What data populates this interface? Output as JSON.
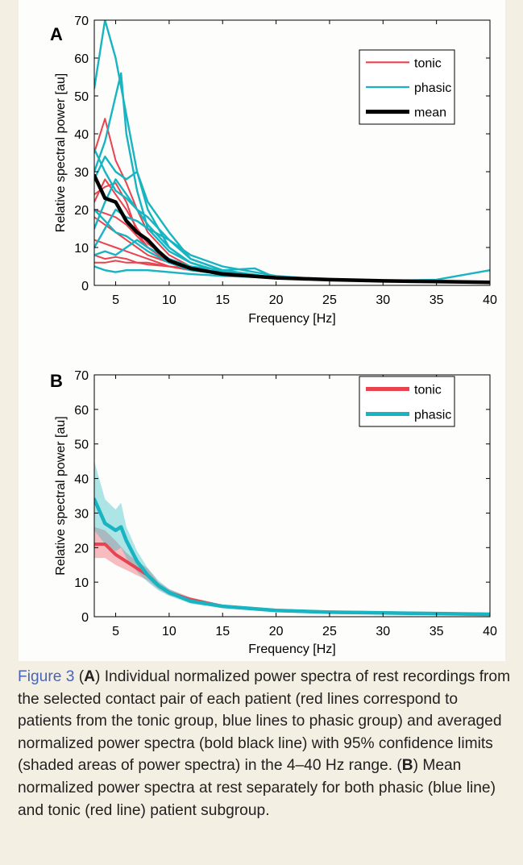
{
  "colors": {
    "background": "#f3f0e3",
    "tonic": "#e8434f",
    "phasic": "#18b4c1",
    "mean": "#000000",
    "caption_label": "#4a64b5"
  },
  "chart_data": [
    {
      "type": "line",
      "panel_label": "A",
      "xlabel": "Frequency [Hz]",
      "ylabel": "Relative spectral power [au]",
      "xlim": [
        3,
        40
      ],
      "ylim": [
        0,
        70
      ],
      "xticks": [
        5,
        10,
        15,
        20,
        25,
        30,
        35,
        40
      ],
      "yticks": [
        0,
        10,
        20,
        30,
        40,
        50,
        60,
        70
      ],
      "legend_position": "top-right",
      "legend": [
        {
          "label": "tonic",
          "color": "#e8434f"
        },
        {
          "label": "phasic",
          "color": "#18b4c1"
        },
        {
          "label": "mean",
          "color": "#000000"
        }
      ],
      "series": [
        {
          "group": "tonic",
          "x": [
            3,
            4,
            5,
            6,
            7,
            8,
            10,
            12,
            15,
            20,
            25,
            30,
            35,
            40
          ],
          "y": [
            35,
            44,
            33,
            27,
            20,
            14,
            8,
            5,
            3,
            2,
            1.5,
            1.2,
            1,
            0.8
          ]
        },
        {
          "group": "tonic",
          "x": [
            3,
            4,
            5,
            6,
            7,
            8,
            10,
            12,
            15,
            20,
            25,
            30,
            35,
            40
          ],
          "y": [
            22,
            28,
            24,
            20,
            15,
            11,
            7,
            4.5,
            3,
            2,
            1.5,
            1.2,
            1,
            0.8
          ]
        },
        {
          "group": "tonic",
          "x": [
            3,
            4,
            5,
            6,
            7,
            8,
            10,
            12,
            15,
            20,
            25,
            30,
            35,
            40
          ],
          "y": [
            18,
            16,
            14,
            12,
            10,
            8,
            6,
            4,
            3,
            2,
            1.5,
            1.2,
            1,
            1
          ]
        },
        {
          "group": "tonic",
          "x": [
            3,
            4,
            5,
            6,
            7,
            8,
            10,
            12,
            15,
            20,
            25,
            30,
            35,
            40
          ],
          "y": [
            24,
            26,
            27,
            22,
            14,
            10,
            6,
            4,
            3,
            2,
            1.5,
            1.2,
            1,
            0.8
          ]
        },
        {
          "group": "tonic",
          "x": [
            3,
            4,
            5,
            6,
            7,
            8,
            10,
            12,
            15,
            20,
            25,
            30,
            35,
            40
          ],
          "y": [
            8,
            7,
            7.5,
            7,
            6,
            6,
            5,
            4,
            3,
            2,
            1.5,
            1.2,
            1,
            0.8
          ]
        },
        {
          "group": "tonic",
          "x": [
            3,
            4,
            5,
            6,
            7,
            8,
            10,
            12,
            15,
            20,
            25,
            30,
            35,
            40
          ],
          "y": [
            6,
            6,
            6.5,
            6,
            6,
            5.5,
            5,
            4.5,
            3,
            2,
            1.5,
            1.2,
            1,
            1
          ]
        },
        {
          "group": "tonic",
          "x": [
            3,
            4,
            5,
            6,
            7,
            8,
            10,
            12,
            15,
            20,
            25,
            30,
            35,
            40
          ],
          "y": [
            20,
            19,
            18,
            16,
            13,
            10,
            7,
            5,
            3,
            2,
            1.5,
            1.2,
            1,
            0.8
          ]
        },
        {
          "group": "tonic",
          "x": [
            3,
            4,
            5,
            6,
            7,
            8,
            10,
            12,
            15,
            20,
            25,
            30,
            35,
            40
          ],
          "y": [
            12,
            11,
            10,
            9,
            8,
            7,
            5,
            4,
            3,
            2,
            1.5,
            1.2,
            1,
            0.8
          ]
        },
        {
          "group": "phasic",
          "x": [
            3,
            4,
            5,
            6,
            7,
            8,
            10,
            12,
            15,
            20,
            25,
            30,
            35,
            40
          ],
          "y": [
            52,
            70,
            60,
            45,
            30,
            20,
            10,
            6,
            3.5,
            2,
            1.5,
            1.2,
            1,
            1
          ]
        },
        {
          "group": "phasic",
          "x": [
            3,
            4,
            5,
            5.5,
            6,
            7,
            8,
            10,
            12,
            15,
            20,
            25,
            30,
            35,
            40
          ],
          "y": [
            30,
            38,
            50,
            56,
            40,
            25,
            15,
            9,
            6,
            3.5,
            2,
            1.5,
            1.2,
            1.5,
            4
          ]
        },
        {
          "group": "phasic",
          "x": [
            3,
            4,
            5,
            6,
            7,
            8,
            10,
            12,
            15,
            20,
            25,
            30,
            35,
            40
          ],
          "y": [
            28,
            34,
            30,
            28,
            30,
            22,
            14,
            7,
            4,
            2,
            1.5,
            1.2,
            1,
            1
          ]
        },
        {
          "group": "phasic",
          "x": [
            3,
            4,
            5,
            6,
            7,
            8,
            10,
            12,
            15,
            20,
            25,
            30,
            35,
            40
          ],
          "y": [
            15,
            22,
            28,
            24,
            20,
            16,
            10,
            6,
            3.5,
            2,
            1.5,
            1.2,
            1,
            0.8
          ]
        },
        {
          "group": "phasic",
          "x": [
            3,
            4,
            5,
            6,
            7,
            8,
            10,
            12,
            15,
            20,
            25,
            30,
            35,
            40
          ],
          "y": [
            10,
            15,
            20,
            18,
            17,
            15,
            12,
            8,
            5,
            2.5,
            1.5,
            1.2,
            1,
            0.8
          ]
        },
        {
          "group": "phasic",
          "x": [
            3,
            4,
            5,
            6,
            7,
            8,
            10,
            12,
            15,
            18,
            20,
            25,
            30,
            35,
            40
          ],
          "y": [
            8,
            9,
            8,
            10,
            12,
            10,
            7,
            5,
            4,
            4.5,
            2,
            1.5,
            1.2,
            1,
            0.8
          ]
        },
        {
          "group": "phasic",
          "x": [
            3,
            4,
            5,
            6,
            7,
            8,
            10,
            12,
            15,
            20,
            25,
            30,
            35,
            40
          ],
          "y": [
            5,
            4,
            3.5,
            4,
            4,
            4,
            3.5,
            3,
            2.5,
            2,
            1.5,
            1.2,
            1,
            0.8
          ]
        },
        {
          "group": "phasic",
          "x": [
            3,
            4,
            5,
            6,
            7,
            8,
            10,
            12,
            15,
            20,
            25,
            30,
            35,
            40
          ],
          "y": [
            36,
            30,
            25,
            23,
            20,
            18,
            12,
            7,
            4,
            2,
            1.5,
            1.2,
            1,
            0.8
          ]
        },
        {
          "group": "phasic",
          "x": [
            3,
            4,
            5,
            6,
            7,
            8,
            10,
            12,
            15,
            20,
            25,
            30,
            35,
            40
          ],
          "y": [
            20,
            17,
            14,
            13,
            11,
            9,
            6,
            4,
            3,
            2,
            1.5,
            1.2,
            1,
            0.8
          ]
        },
        {
          "group": "mean",
          "x": [
            3,
            4,
            5,
            6,
            7,
            8,
            9,
            10,
            12,
            15,
            20,
            25,
            30,
            35,
            40
          ],
          "y": [
            29,
            23,
            22,
            17,
            14,
            12,
            9,
            6.5,
            4.5,
            3,
            2,
            1.5,
            1.2,
            1,
            0.8
          ]
        }
      ]
    },
    {
      "type": "line",
      "panel_label": "B",
      "xlabel": "Frequency [Hz]",
      "ylabel": "Relative spectral power [au]",
      "xlim": [
        3,
        40
      ],
      "ylim": [
        0,
        70
      ],
      "xticks": [
        5,
        10,
        15,
        20,
        25,
        30,
        35,
        40
      ],
      "yticks": [
        0,
        10,
        20,
        30,
        40,
        50,
        60,
        70
      ],
      "legend_position": "top-right",
      "legend": [
        {
          "label": "tonic",
          "color": "#e8434f"
        },
        {
          "label": "phasic",
          "color": "#18b4c1"
        }
      ],
      "series": [
        {
          "group": "tonic",
          "x": [
            3,
            4,
            5,
            6,
            7,
            8,
            9,
            10,
            12,
            15,
            20,
            25,
            30,
            35,
            40
          ],
          "y": [
            21,
            21,
            18,
            16,
            14,
            12,
            9,
            7,
            5,
            3,
            1.8,
            1.3,
            1.1,
            0.9,
            0.7
          ],
          "lower": [
            17,
            17,
            15,
            13.5,
            12,
            10.5,
            8,
            6.2,
            4.5,
            2.6,
            1.5,
            1.1,
            0.9,
            0.7,
            0.5
          ],
          "upper": [
            26,
            25,
            22,
            18.5,
            16,
            14,
            10,
            8,
            5.6,
            3.5,
            2.1,
            1.5,
            1.3,
            1.1,
            0.9
          ]
        },
        {
          "group": "phasic",
          "x": [
            3,
            4,
            5,
            5.5,
            6,
            7,
            8,
            9,
            10,
            12,
            15,
            20,
            25,
            30,
            35,
            40
          ],
          "y": [
            34,
            27,
            25,
            26,
            22,
            16,
            12,
            9,
            7,
            4.5,
            3,
            1.8,
            1.3,
            1.1,
            0.9,
            0.7
          ],
          "lower": [
            25,
            21,
            19,
            20,
            17,
            13,
            10,
            7.6,
            6,
            3.8,
            2.5,
            1.5,
            1.1,
            0.9,
            0.7,
            0.5
          ],
          "upper": [
            45,
            34,
            31,
            33,
            26,
            19,
            14,
            10.5,
            8,
            5.2,
            3.5,
            2.1,
            1.5,
            1.3,
            1.1,
            0.9
          ]
        }
      ]
    }
  ],
  "caption": {
    "label": "Figure 3",
    "p1": " (",
    "a": "A",
    "p2": ") Individual normalized power spectra of rest recordings from the selected contact pair of each patient (red lines correspond to patients from the tonic group, blue lines to phasic group) and averaged normalized power spectra (bold black line) with 95% confidence limits (shaded areas of power spectra) in the 4–40 Hz range. (",
    "b": "B",
    "p3": ") Mean normalized power spectra at rest separately for both phasic (blue line) and tonic (red line) patient subgroup."
  }
}
